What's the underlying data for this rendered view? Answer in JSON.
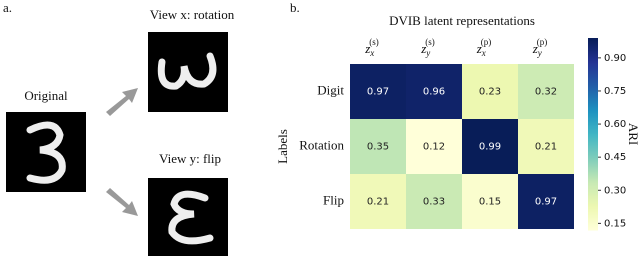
{
  "panel_a": {
    "label": "a.",
    "original": "Original",
    "view_x": "View x: rotation",
    "view_y": "View y: flip"
  },
  "chart_data": {
    "type": "heatmap",
    "panel_label": "b.",
    "title": "DVIB latent representations",
    "x_columns": [
      {
        "base": "z",
        "sub": "x",
        "sup": "(s)"
      },
      {
        "base": "z",
        "sub": "y",
        "sup": "(s)"
      },
      {
        "base": "z",
        "sub": "x",
        "sup": "(p)"
      },
      {
        "base": "z",
        "sub": "y",
        "sup": "(p)"
      }
    ],
    "categories": [
      "Digit",
      "Rotation",
      "Flip"
    ],
    "ylabel": "Labels",
    "values": [
      [
        0.97,
        0.96,
        0.23,
        0.32
      ],
      [
        0.35,
        0.12,
        0.99,
        0.21
      ],
      [
        0.21,
        0.33,
        0.15,
        0.97
      ]
    ],
    "colormap": "YlGnBu",
    "colorbar_label": "ARI",
    "clim": [
      0.12,
      0.99
    ],
    "cticks": [
      {
        "value": 0.15,
        "label": "0.15"
      },
      {
        "value": 0.3,
        "label": "0.30"
      },
      {
        "value": 0.45,
        "label": "0.45"
      },
      {
        "value": 0.6,
        "label": "0.60"
      },
      {
        "value": 0.75,
        "label": "0.75"
      },
      {
        "value": 0.9,
        "label": "0.90"
      }
    ]
  }
}
